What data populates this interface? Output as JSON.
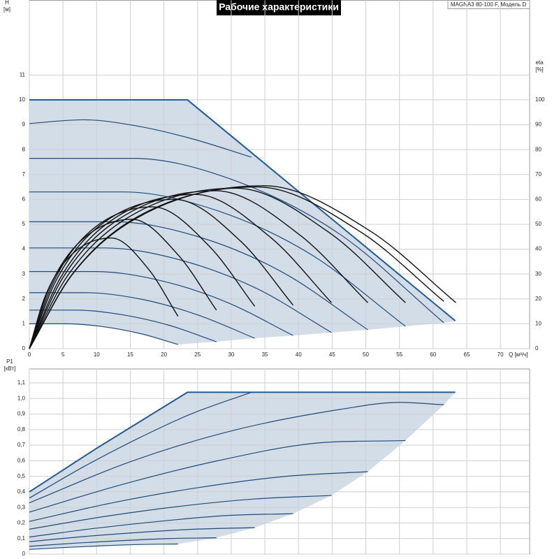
{
  "chart_data": [
    {
      "type": "line",
      "title": "Рабочие характеристики",
      "model": "MAGNA3 80-100 F, Модель D",
      "x_label": "Q [м³/ч]",
      "y_label": "H",
      "y_unit": "[м]",
      "y2_label": "eta",
      "y2_unit": "[%]",
      "xlim": [
        0,
        74.35
      ],
      "xticks": [
        0,
        5,
        10,
        15,
        20,
        25,
        30,
        35,
        40,
        45,
        50,
        55,
        60,
        65,
        70
      ],
      "ylim": [
        0,
        14
      ],
      "yticks": [
        0,
        1,
        2,
        3,
        4,
        5,
        6,
        7,
        8,
        9,
        10,
        11
      ],
      "y2lim": [
        0,
        140
      ],
      "y2ticks": [
        0,
        10,
        20,
        30,
        40,
        50,
        60,
        70,
        80,
        90,
        100
      ],
      "grid": true,
      "area_color": "#d3dde8",
      "series": [
        {
          "color": "#1f5a92",
          "smooth": false,
          "x": [
            0,
            23.5,
            63.3
          ],
          "values": [
            10,
            10,
            1.12
          ]
        },
        {
          "color": "#1f4a7a",
          "x": [
            0,
            8,
            16,
            24,
            33
          ],
          "values": [
            9.05,
            9.2,
            8.95,
            8.45,
            7.7
          ]
        },
        {
          "color": "#1f4a7a",
          "x": [
            0,
            15.4,
            30.8,
            46.2,
            61.6
          ],
          "values": [
            7.65,
            7.65,
            6.73,
            4.59,
            1.04
          ]
        },
        {
          "color": "#1f4a7a",
          "x": [
            0,
            14,
            28,
            41.9,
            55.9
          ],
          "values": [
            6.3,
            6.3,
            5.54,
            3.78,
            0.9
          ]
        },
        {
          "color": "#1f4a7a",
          "x": [
            0,
            12.6,
            25.2,
            37.7,
            50.3
          ],
          "values": [
            5.1,
            5.1,
            4.49,
            3.06,
            0.76
          ]
        },
        {
          "color": "#1f4a7a",
          "x": [
            0,
            11.2,
            22.5,
            33.7,
            44.9
          ],
          "values": [
            4.05,
            4.05,
            3.56,
            2.43,
            0.65
          ]
        },
        {
          "color": "#1f4a7a",
          "x": [
            0,
            9.8,
            19.6,
            29.4,
            39.2
          ],
          "values": [
            3.1,
            3.1,
            2.73,
            1.86,
            0.53
          ]
        },
        {
          "color": "#1f4a7a",
          "x": [
            0,
            8.4,
            16.8,
            25.1,
            33.5
          ],
          "values": [
            2.25,
            2.25,
            1.98,
            1.35,
            0.42
          ]
        },
        {
          "color": "#1f4a7a",
          "x": [
            0,
            7,
            13.9,
            20.9,
            27.8
          ],
          "values": [
            1.55,
            1.55,
            1.36,
            0.93,
            0.28
          ]
        },
        {
          "color": "#1f4a7a",
          "x": [
            0,
            5.5,
            11.1,
            16.6,
            22.1
          ],
          "values": [
            1.0,
            1.0,
            0.88,
            0.6,
            0.17
          ]
        },
        {
          "color": "#111111",
          "axis": "y2",
          "x": [
            0,
            2.2,
            5.5,
            12.2,
            17.7,
            22.1
          ],
          "values": [
            0,
            20,
            35.6,
            44.5,
            32,
            13
          ]
        },
        {
          "color": "#111111",
          "axis": "y2",
          "x": [
            0,
            2.8,
            7,
            15.3,
            22.2,
            27.8
          ],
          "values": [
            0,
            23.4,
            41.6,
            52,
            37.4,
            15.5
          ]
        },
        {
          "color": "#111111",
          "axis": "y2",
          "x": [
            0,
            3.4,
            8.4,
            18.4,
            26.8,
            33.5
          ],
          "values": [
            0,
            25.7,
            45.6,
            57,
            41,
            17
          ]
        },
        {
          "color": "#111111",
          "axis": "y2",
          "x": [
            0,
            3.9,
            9.8,
            21.6,
            31.4,
            39.2
          ],
          "values": [
            0,
            27,
            48,
            60,
            43.2,
            17.5
          ]
        },
        {
          "color": "#111111",
          "axis": "y2",
          "x": [
            0,
            4.5,
            11.2,
            24.7,
            35.9,
            44.9
          ],
          "values": [
            0,
            27.9,
            49.6,
            62,
            44.6,
            18.5
          ]
        },
        {
          "color": "#111111",
          "axis": "y2",
          "x": [
            0,
            5,
            12.6,
            27.7,
            40.2,
            50.3
          ],
          "values": [
            0,
            28.6,
            50.8,
            63.5,
            45.7,
            18.5
          ]
        },
        {
          "color": "#111111",
          "axis": "y2",
          "x": [
            0,
            5.6,
            14,
            30.7,
            44.7,
            55.9
          ],
          "values": [
            0,
            29,
            51.6,
            64.5,
            46.4,
            18.5
          ]
        },
        {
          "color": "#111111",
          "axis": "y2",
          "x": [
            0,
            6.2,
            15.4,
            33.9,
            49.3,
            61.6
          ],
          "values": [
            0,
            29.3,
            52,
            65,
            46.8,
            19
          ]
        },
        {
          "color": "#111111",
          "axis": "y2",
          "x": [
            0,
            6.3,
            15.9,
            34.9,
            50.7,
            63.4
          ],
          "values": [
            0,
            29.5,
            52.4,
            65.5,
            47.2,
            18.5
          ]
        }
      ]
    },
    {
      "type": "line",
      "y_label": "P1",
      "y_unit": "[кВт]",
      "xlim": [
        0,
        74.35
      ],
      "ylim": [
        0,
        1.19
      ],
      "yticks": [
        0,
        {
          "value": 0.1,
          "label": "0,1"
        },
        {
          "value": 0.2,
          "label": "0,2"
        },
        {
          "value": 0.3,
          "label": "0,3"
        },
        {
          "value": 0.4,
          "label": "0,4"
        },
        {
          "value": 0.5,
          "label": "0,5"
        },
        {
          "value": 0.6,
          "label": "0,6"
        },
        {
          "value": 0.7,
          "label": "0,7"
        },
        {
          "value": 0.8,
          "label": "0,8"
        },
        {
          "value": 0.9,
          "label": "0,9"
        },
        {
          "value": 1.0,
          "label": "1,0"
        },
        {
          "value": 1.1,
          "label": "1,1"
        }
      ],
      "grid": true,
      "area_color": "#d3dde8",
      "series": [
        {
          "color": "#1f5a92",
          "smooth": false,
          "x": [
            0,
            10,
            23.5,
            63.3
          ],
          "values": [
            0.4,
            0.68,
            1.04,
            1.04
          ]
        },
        {
          "color": "#1f4a7a",
          "x": [
            0,
            8,
            16,
            24,
            33
          ],
          "values": [
            0.36,
            0.56,
            0.74,
            0.9,
            1.04
          ]
        },
        {
          "color": "#1f4a7a",
          "x": [
            0,
            15.4,
            30.8,
            46.2,
            55,
            61.6
          ],
          "values": [
            0.33,
            0.6,
            0.8,
            0.93,
            0.975,
            0.96
          ]
        },
        {
          "color": "#1f4a7a",
          "x": [
            0,
            14,
            28,
            41.9,
            55.9
          ],
          "values": [
            0.27,
            0.45,
            0.6,
            0.71,
            0.73
          ]
        },
        {
          "color": "#1f4a7a",
          "x": [
            0,
            12.6,
            25.2,
            37.7,
            50.3
          ],
          "values": [
            0.21,
            0.332,
            0.428,
            0.498,
            0.53
          ]
        },
        {
          "color": "#1f4a7a",
          "x": [
            0,
            11.2,
            22.5,
            33.7,
            44.9
          ],
          "values": [
            0.16,
            0.242,
            0.308,
            0.355,
            0.377
          ]
        },
        {
          "color": "#1f4a7a",
          "x": [
            0,
            9.8,
            19.6,
            29.4,
            39.2
          ],
          "values": [
            0.11,
            0.166,
            0.212,
            0.248,
            0.26
          ]
        },
        {
          "color": "#1f4a7a",
          "x": [
            0,
            8.4,
            16.8,
            25.1,
            33.5
          ],
          "values": [
            0.08,
            0.114,
            0.141,
            0.161,
            0.17
          ]
        },
        {
          "color": "#1f4a7a",
          "x": [
            0,
            7,
            13.9,
            20.9,
            27.8
          ],
          "values": [
            0.05,
            0.071,
            0.087,
            0.1,
            0.105
          ]
        },
        {
          "color": "#1f4a7a",
          "x": [
            0,
            5.5,
            11.1,
            16.6,
            22.1
          ],
          "values": [
            0.03,
            0.043,
            0.054,
            0.062,
            0.065
          ]
        }
      ]
    }
  ]
}
